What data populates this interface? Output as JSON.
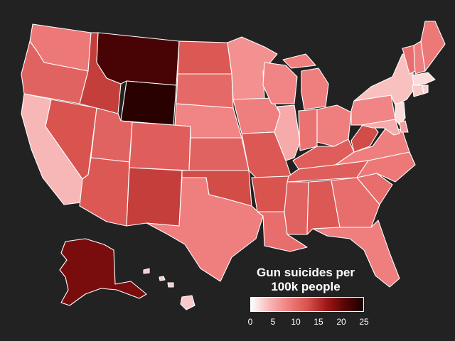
{
  "map": {
    "colors": {
      "background": "#222222",
      "border": "#ffffff",
      "scale": [
        "#ffffff",
        "#f8b4b4",
        "#f08080",
        "#d9534f",
        "#a01818",
        "#5a0505",
        "#1a0000"
      ]
    },
    "states": [
      {
        "abbr": "WA",
        "value": 9.0
      },
      {
        "abbr": "OR",
        "value": 11.0
      },
      {
        "abbr": "CA",
        "value": 4.0
      },
      {
        "abbr": "ID",
        "value": 14.0
      },
      {
        "abbr": "NV",
        "value": 12.5
      },
      {
        "abbr": "MT",
        "value": 22.0
      },
      {
        "abbr": "WY",
        "value": 24.0
      },
      {
        "abbr": "UT",
        "value": 11.0
      },
      {
        "abbr": "AZ",
        "value": 12.0
      },
      {
        "abbr": "CO",
        "value": 11.5
      },
      {
        "abbr": "NM",
        "value": 14.0
      },
      {
        "abbr": "ND",
        "value": 12.0
      },
      {
        "abbr": "SD",
        "value": 10.5
      },
      {
        "abbr": "NE",
        "value": 8.0
      },
      {
        "abbr": "KS",
        "value": 11.0
      },
      {
        "abbr": "OK",
        "value": 13.0
      },
      {
        "abbr": "TX",
        "value": 8.5
      },
      {
        "abbr": "MN",
        "value": 7.0
      },
      {
        "abbr": "IA",
        "value": 8.5
      },
      {
        "abbr": "MO",
        "value": 12.0
      },
      {
        "abbr": "AR",
        "value": 12.5
      },
      {
        "abbr": "LA",
        "value": 10.0
      },
      {
        "abbr": "WI",
        "value": 8.0
      },
      {
        "abbr": "IL",
        "value": 5.0
      },
      {
        "abbr": "MI",
        "value": 8.5
      },
      {
        "abbr": "IN",
        "value": 9.5
      },
      {
        "abbr": "OH",
        "value": 8.5
      },
      {
        "abbr": "KY",
        "value": 11.5
      },
      {
        "abbr": "TN",
        "value": 11.5
      },
      {
        "abbr": "MS",
        "value": 11.0
      },
      {
        "abbr": "AL",
        "value": 12.0
      },
      {
        "abbr": "GA",
        "value": 10.0
      },
      {
        "abbr": "FL",
        "value": 8.5
      },
      {
        "abbr": "SC",
        "value": 10.0
      },
      {
        "abbr": "NC",
        "value": 9.0
      },
      {
        "abbr": "VA",
        "value": 8.5
      },
      {
        "abbr": "WV",
        "value": 13.0
      },
      {
        "abbr": "PA",
        "value": 8.0
      },
      {
        "abbr": "NY",
        "value": 3.5
      },
      {
        "abbr": "VT",
        "value": 10.0
      },
      {
        "abbr": "NH",
        "value": 8.5
      },
      {
        "abbr": "ME",
        "value": 9.0
      },
      {
        "abbr": "MA",
        "value": 2.0
      },
      {
        "abbr": "CT",
        "value": 3.0
      },
      {
        "abbr": "RI",
        "value": 2.5
      },
      {
        "abbr": "NJ",
        "value": 2.0
      },
      {
        "abbr": "DE",
        "value": 6.0
      },
      {
        "abbr": "MD",
        "value": 5.0
      },
      {
        "abbr": "AK",
        "value": 19.0
      },
      {
        "abbr": "HI",
        "value": 3.0
      }
    ]
  },
  "legend": {
    "title_line1": "Gun suicides per",
    "title_line2": "100k people",
    "ticks": [
      "0",
      "5",
      "10",
      "15",
      "20",
      "25"
    ],
    "min": 0,
    "max": 25
  }
}
